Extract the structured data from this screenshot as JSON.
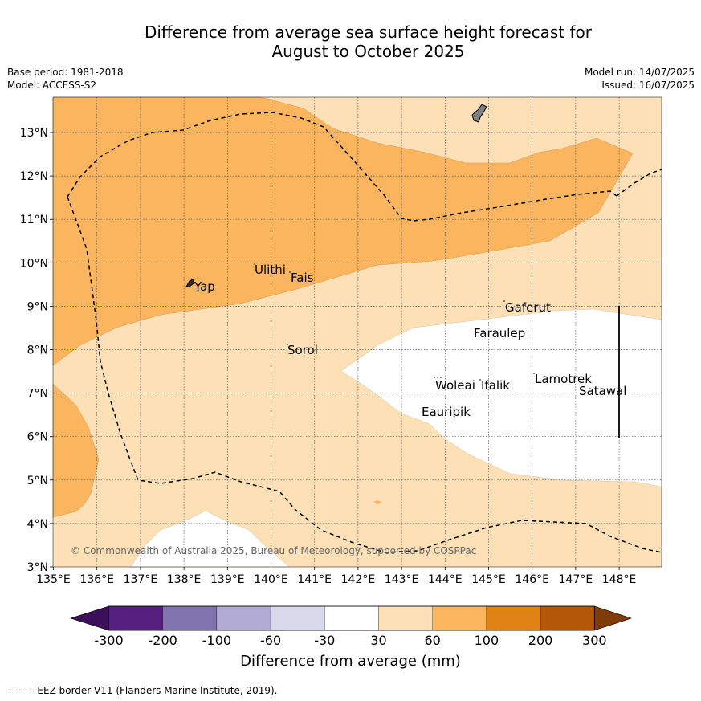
{
  "title_line1": "Difference from average sea surface height forecast for",
  "title_line2": "August to October 2025",
  "meta": {
    "base_period": "Base period: 1981-2018",
    "model": "Model: ACCESS-S2",
    "model_run": "Model run: 14/07/2025",
    "issued": "Issued: 16/07/2025"
  },
  "lon_labels": [
    "135°E",
    "136°E",
    "137°E",
    "138°E",
    "139°E",
    "140°E",
    "141°E",
    "142°E",
    "143°E",
    "144°E",
    "145°E",
    "146°E",
    "147°E",
    "148°E"
  ],
  "lat_labels": [
    "3°N",
    "4°N",
    "5°N",
    "6°N",
    "7°N",
    "8°N",
    "9°N",
    "10°N",
    "11°N",
    "12°N",
    "13°N"
  ],
  "places": [
    {
      "name": "Yap"
    },
    {
      "name": "Ulithi"
    },
    {
      "name": "Fais"
    },
    {
      "name": "Gaferut"
    },
    {
      "name": "Faraulep"
    },
    {
      "name": "Sorol"
    },
    {
      "name": "Woleai"
    },
    {
      "name": "Ifalik"
    },
    {
      "name": "Lamotrek"
    },
    {
      "name": "Satawal"
    },
    {
      "name": "Eauripik"
    }
  ],
  "copyright": "© Commonwealth of Australia 2025, Bureau of Meteorology, supported by COSPPac",
  "colorbar": {
    "title": "Difference from average (mm)",
    "ticks": [
      "-300",
      "-200",
      "-100",
      "-60",
      "-30",
      "30",
      "60",
      "100",
      "200",
      "300"
    ],
    "colors": [
      "#3b0f5a",
      "#55207f",
      "#8073ae",
      "#b1aad2",
      "#d9d9ec",
      "#ffffff",
      "#fde0b6",
      "#fbb55f",
      "#e08315",
      "#b25807",
      "#7f3b08"
    ]
  },
  "colors": {
    "light_orange": "#fde0b6",
    "medium_orange": "#fbb55f",
    "white": "#ffffff",
    "land": "#808080"
  },
  "footnote": "--  --  -- EEZ border V11 (Flanders Marine Institute, 2019)."
}
